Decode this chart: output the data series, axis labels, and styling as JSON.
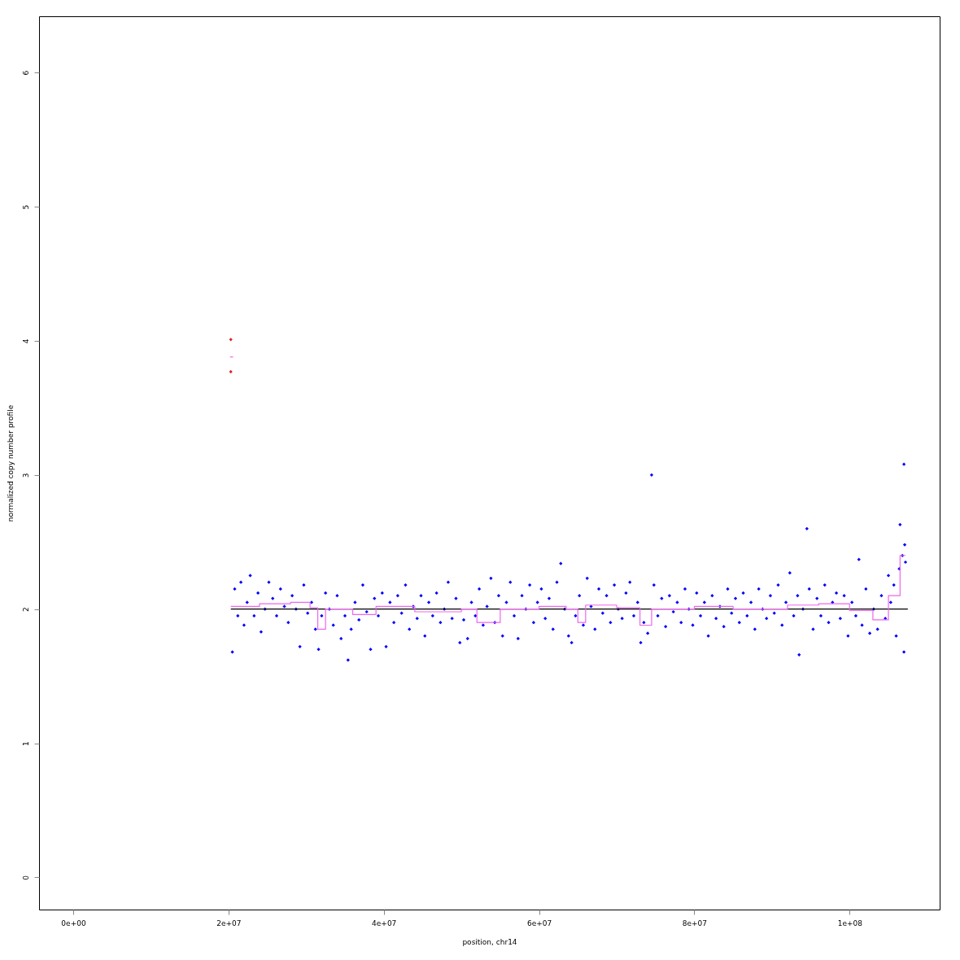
{
  "chart_data": {
    "type": "scatter",
    "xlabel": "position, chr14",
    "ylabel": "normalized copy number profile",
    "xlim": [
      -4400000,
      111600000
    ],
    "ylim": [
      -0.24,
      6.42
    ],
    "xticks": [
      {
        "value": 0,
        "label": "0e+00"
      },
      {
        "value": 20000000,
        "label": "2e+07"
      },
      {
        "value": 40000000,
        "label": "4e+07"
      },
      {
        "value": 60000000,
        "label": "6e+07"
      },
      {
        "value": 80000000,
        "label": "8e+07"
      },
      {
        "value": 100000000,
        "label": "1e+08"
      }
    ],
    "yticks": [
      0,
      1,
      2,
      3,
      4,
      5,
      6
    ],
    "grid": false,
    "marker": "diamond",
    "series": [
      {
        "color": "#0000ff",
        "x": [
          20500000,
          20800000,
          21200000,
          21600000,
          22000000,
          22400000,
          22800000,
          23300000,
          23800000,
          24200000,
          24700000,
          25200000,
          25700000,
          26200000,
          26700000,
          27200000,
          27700000,
          28200000,
          28700000,
          29200000,
          29700000,
          30200000,
          30700000,
          31200000,
          31600000,
          32000000,
          32500000,
          33000000,
          33500000,
          34000000,
          34500000,
          35000000,
          35400000,
          35800000,
          36300000,
          36800000,
          37300000,
          37800000,
          38300000,
          38800000,
          39300000,
          39800000,
          40300000,
          40800000,
          41300000,
          41800000,
          42300000,
          42800000,
          43300000,
          43800000,
          44300000,
          44800000,
          45300000,
          45800000,
          46300000,
          46800000,
          47300000,
          47800000,
          48300000,
          48800000,
          49300000,
          49800000,
          50300000,
          50800000,
          51300000,
          51800000,
          52300000,
          52800000,
          53300000,
          53800000,
          54300000,
          54800000,
          55300000,
          55800000,
          56300000,
          56800000,
          57300000,
          57800000,
          58300000,
          58800000,
          59300000,
          59800000,
          60300000,
          60800000,
          61300000,
          61800000,
          62300000,
          62800000,
          63300000,
          63800000,
          64200000,
          64700000,
          65200000,
          65700000,
          66200000,
          66700000,
          67200000,
          67700000,
          68200000,
          68700000,
          69200000,
          69700000,
          70200000,
          70700000,
          71200000,
          71700000,
          72200000,
          72700000,
          73100000,
          73500000,
          74000000,
          74500000,
          74800000,
          75300000,
          75800000,
          76300000,
          76800000,
          77300000,
          77800000,
          78300000,
          78800000,
          79300000,
          79800000,
          80300000,
          80800000,
          81300000,
          81800000,
          82300000,
          82800000,
          83300000,
          83800000,
          84300000,
          84800000,
          85300000,
          85800000,
          86300000,
          86800000,
          87300000,
          87800000,
          88300000,
          88800000,
          89300000,
          89800000,
          90300000,
          90800000,
          91300000,
          91800000,
          92300000,
          92800000,
          93300000,
          93500000,
          94000000,
          94500000,
          94800000,
          95300000,
          95800000,
          96300000,
          96800000,
          97300000,
          97800000,
          98300000,
          98800000,
          99300000,
          99800000,
          100300000,
          100800000,
          101200000,
          101600000,
          102100000,
          102600000,
          103100000,
          103600000,
          104100000,
          104600000,
          105000000,
          105300000,
          105700000,
          106000000,
          106400000,
          106500000,
          106800000,
          107000000,
          107000000,
          107100000,
          107200000
        ],
        "values": [
          1.68,
          2.15,
          1.95,
          2.2,
          1.88,
          2.05,
          2.25,
          1.95,
          2.12,
          1.83,
          2.0,
          2.2,
          2.08,
          1.95,
          2.15,
          2.02,
          1.9,
          2.1,
          2.0,
          1.72,
          2.18,
          1.97,
          2.05,
          1.85,
          1.7,
          1.95,
          2.12,
          2.0,
          1.88,
          2.1,
          1.78,
          1.95,
          1.62,
          1.85,
          2.05,
          1.92,
          2.18,
          1.98,
          1.7,
          2.08,
          1.95,
          2.12,
          1.72,
          2.05,
          1.9,
          2.1,
          1.97,
          2.18,
          1.85,
          2.02,
          1.93,
          2.1,
          1.8,
          2.05,
          1.95,
          2.12,
          1.9,
          2.0,
          2.2,
          1.93,
          2.08,
          1.75,
          1.92,
          1.78,
          2.05,
          1.95,
          2.15,
          1.88,
          2.02,
          2.23,
          1.9,
          2.1,
          1.8,
          2.05,
          2.2,
          1.95,
          1.78,
          2.1,
          2.0,
          2.18,
          1.9,
          2.05,
          2.15,
          1.93,
          2.08,
          1.85,
          2.2,
          2.34,
          2.0,
          1.8,
          1.75,
          1.95,
          2.1,
          1.88,
          2.23,
          2.02,
          1.85,
          2.15,
          1.97,
          2.1,
          1.9,
          2.18,
          2.0,
          1.93,
          2.12,
          2.2,
          1.95,
          2.05,
          1.75,
          1.9,
          1.82,
          3.0,
          2.18,
          1.95,
          2.08,
          1.87,
          2.1,
          1.98,
          2.05,
          1.9,
          2.15,
          2.0,
          1.88,
          2.12,
          1.95,
          2.05,
          1.8,
          2.1,
          1.93,
          2.02,
          1.87,
          2.15,
          1.97,
          2.08,
          1.9,
          2.12,
          1.95,
          2.05,
          1.85,
          2.15,
          2.0,
          1.93,
          2.1,
          1.97,
          2.18,
          1.88,
          2.05,
          2.27,
          1.95,
          2.1,
          1.66,
          2.0,
          2.6,
          2.15,
          1.85,
          2.08,
          1.95,
          2.18,
          1.9,
          2.05,
          2.12,
          1.93,
          2.1,
          1.8,
          2.05,
          1.95,
          2.37,
          1.88,
          2.15,
          1.82,
          2.0,
          1.85,
          2.1,
          1.93,
          2.25,
          2.05,
          2.18,
          1.8,
          2.3,
          2.63,
          2.4,
          1.68,
          3.08,
          2.48,
          2.35
        ]
      },
      {
        "color": "#dd2222",
        "x": [
          20300000,
          20300000
        ],
        "values": [
          4.01,
          3.77
        ]
      },
      {
        "type": "line",
        "marker": "none",
        "color": "#000000",
        "x": [
          20300000,
          107500000
        ],
        "values": [
          2,
          2
        ]
      },
      {
        "type": "step",
        "marker": "none",
        "color": "#ee66ee",
        "x": [
          20300000,
          24000000,
          28000000,
          30500000,
          31500000,
          32500000,
          36000000,
          39000000,
          44000000,
          50000000,
          52000000,
          55000000,
          60000000,
          63500000,
          65000000,
          66000000,
          70000000,
          73000000,
          74500000,
          80000000,
          85000000,
          92000000,
          96000000,
          100000000,
          103000000,
          105000000,
          106500000,
          107200000
        ],
        "values": [
          2.02,
          2.04,
          2.05,
          2.01,
          1.85,
          2.0,
          1.96,
          2.02,
          1.98,
          2.0,
          1.9,
          2.0,
          2.02,
          2.0,
          1.9,
          2.03,
          2.01,
          1.88,
          2.0,
          2.02,
          2.0,
          2.03,
          2.04,
          1.99,
          1.92,
          2.1,
          2.4,
          2.4
        ]
      },
      {
        "type": "line",
        "marker": "none",
        "color": "#ee66ee",
        "x": [
          20200000,
          20600000
        ],
        "values": [
          3.88,
          3.88
        ]
      }
    ]
  }
}
